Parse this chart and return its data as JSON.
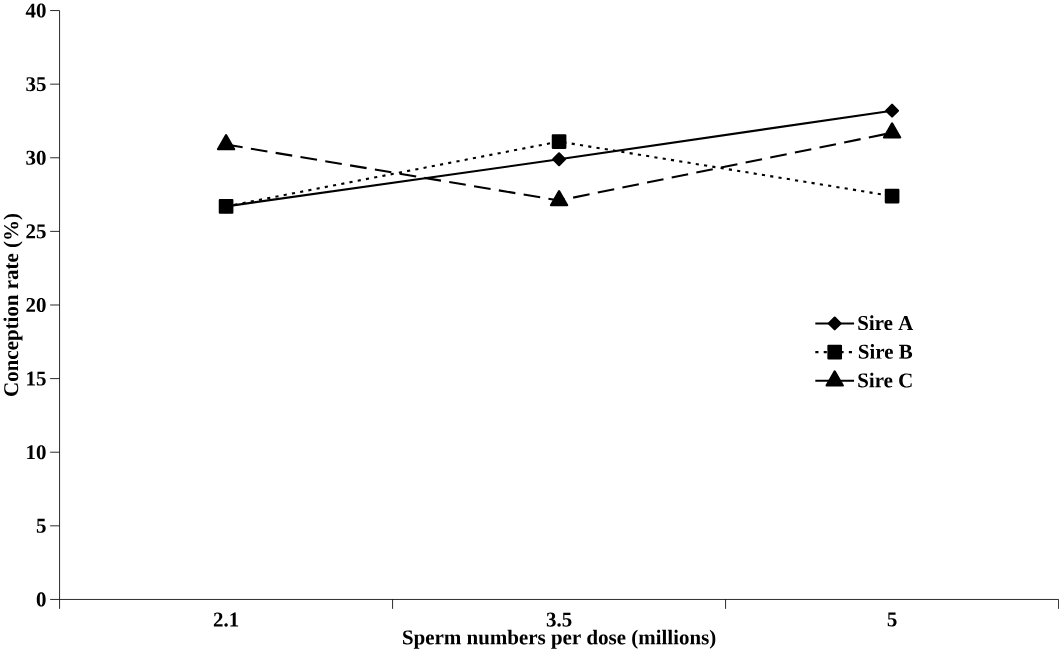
{
  "chart_data": {
    "type": "line",
    "xlabel": "Sperm numbers per dose (millions)",
    "ylabel": "Conception rate (%)",
    "categories": [
      "2.1",
      "3.5",
      "5"
    ],
    "series": [
      {
        "name": "Sire A",
        "color": "#000000",
        "marker": "diamond",
        "line_style": "solid",
        "values": [
          26.7,
          29.9,
          33.2
        ]
      },
      {
        "name": "Sire B",
        "color": "#000000",
        "marker": "square",
        "line_style": "dotted",
        "values": [
          26.7,
          31.1,
          27.4
        ]
      },
      {
        "name": "Sire C",
        "color": "#000000",
        "marker": "triangle",
        "line_style": "dashed",
        "values": [
          30.9,
          27.1,
          31.7
        ]
      }
    ],
    "ylim": [
      0,
      40
    ],
    "yticks": [
      0,
      5,
      10,
      15,
      20,
      25,
      30,
      35,
      40
    ],
    "legend": "right",
    "grid": false
  }
}
